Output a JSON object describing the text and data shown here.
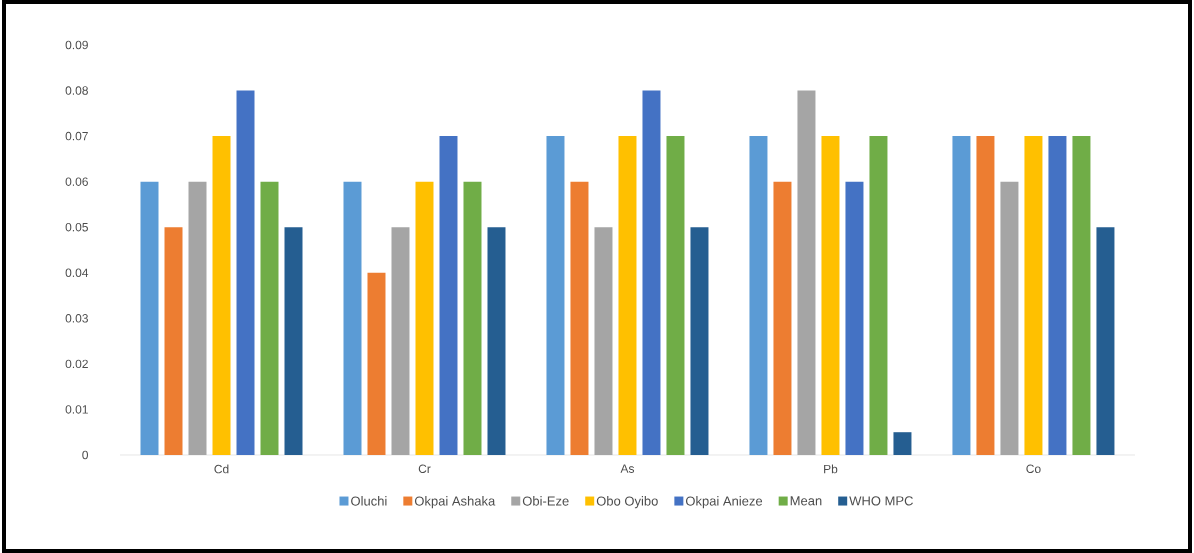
{
  "chart_data": {
    "type": "bar",
    "categories": [
      "Cd",
      "Cr",
      "As",
      "Pb",
      "Co"
    ],
    "series": [
      {
        "name": "Oluchi",
        "color": "#5b9bd5",
        "values": [
          0.06,
          0.06,
          0.07,
          0.07,
          0.07
        ]
      },
      {
        "name": "Okpai Ashaka",
        "color": "#ed7d31",
        "values": [
          0.05,
          0.04,
          0.06,
          0.06,
          0.07
        ]
      },
      {
        "name": "Obi-Eze",
        "color": "#a5a5a5",
        "values": [
          0.06,
          0.05,
          0.05,
          0.08,
          0.06
        ]
      },
      {
        "name": "Obo Oyibo",
        "color": "#ffc000",
        "values": [
          0.07,
          0.06,
          0.07,
          0.07,
          0.07
        ]
      },
      {
        "name": "Okpai Anieze",
        "color": "#4472c4",
        "values": [
          0.08,
          0.07,
          0.08,
          0.06,
          0.07
        ]
      },
      {
        "name": "Mean",
        "color": "#70ad47",
        "values": [
          0.06,
          0.06,
          0.07,
          0.07,
          0.07
        ]
      },
      {
        "name": "WHO MPC",
        "color": "#255e91",
        "values": [
          0.05,
          0.05,
          0.05,
          0.005,
          0.05
        ]
      }
    ],
    "ylim": [
      0,
      0.09
    ],
    "yticks": [
      0,
      0.01,
      0.02,
      0.03,
      0.04,
      0.05,
      0.06,
      0.07,
      0.08,
      0.09
    ],
    "grid": false,
    "legend": "bottom"
  }
}
